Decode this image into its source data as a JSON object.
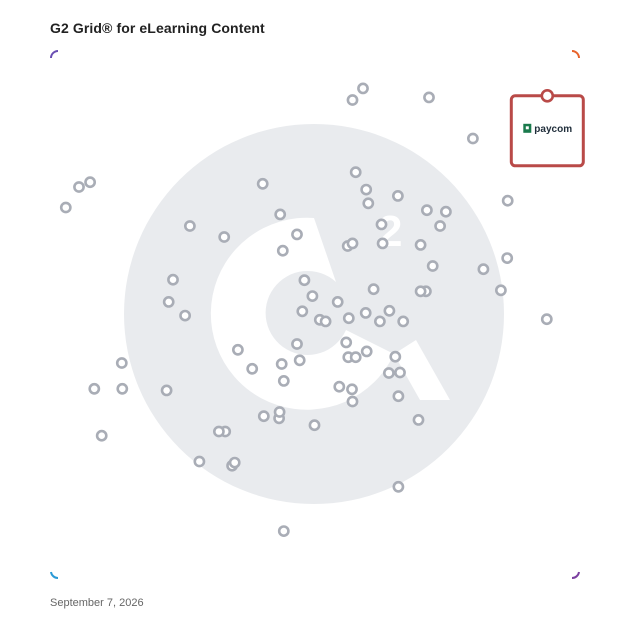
{
  "header": {
    "title": "G2 Grid® for eLearning Content"
  },
  "footer": {
    "date": "September 7, 2026"
  },
  "highlight": {
    "brand": "paycom",
    "brand_color": "#1a7a4c",
    "box_color": "#b94a48"
  },
  "colors": {
    "frame_top_left": "#6a4fb3",
    "frame_top_right": "#e8632b",
    "frame_bottom_left": "#2a9ad6",
    "frame_bottom_right": "#7b3fa0",
    "marker": "#a9adb6",
    "watermark": "#e9ebee"
  },
  "chart_data": {
    "type": "scatter",
    "title": "G2 Grid® for eLearning Content",
    "xlabel": "",
    "ylabel": "",
    "xlim": [
      0,
      100
    ],
    "ylim": [
      0,
      100
    ],
    "grid": "quadrants",
    "highlighted_point": {
      "label": "paycom",
      "x": 94,
      "y": 86
    },
    "points": [
      {
        "x": 2.8,
        "y": 70.3
      },
      {
        "x": 5.3,
        "y": 74.2
      },
      {
        "x": 7.4,
        "y": 75.1
      },
      {
        "x": 23.1,
        "y": 56.6
      },
      {
        "x": 26.3,
        "y": 66.8
      },
      {
        "x": 32.8,
        "y": 64.7
      },
      {
        "x": 22.3,
        "y": 52.4
      },
      {
        "x": 25.4,
        "y": 49.8
      },
      {
        "x": 40.1,
        "y": 74.8
      },
      {
        "x": 43.4,
        "y": 69.0
      },
      {
        "x": 46.6,
        "y": 65.2
      },
      {
        "x": 43.9,
        "y": 62.1
      },
      {
        "x": 35.4,
        "y": 43.3
      },
      {
        "x": 33.0,
        "y": 27.8
      },
      {
        "x": 38.1,
        "y": 39.7
      },
      {
        "x": 49.5,
        "y": 53.5
      },
      {
        "x": 47.6,
        "y": 50.6
      },
      {
        "x": 50.9,
        "y": 49.0
      },
      {
        "x": 52.0,
        "y": 48.7
      },
      {
        "x": 54.3,
        "y": 52.4
      },
      {
        "x": 48.0,
        "y": 56.5
      },
      {
        "x": 57.7,
        "y": 77.0
      },
      {
        "x": 57.1,
        "y": 90.7
      },
      {
        "x": 59.1,
        "y": 92.9
      },
      {
        "x": 71.6,
        "y": 91.2
      },
      {
        "x": 79.9,
        "y": 83.4
      },
      {
        "x": 86.5,
        "y": 71.6
      },
      {
        "x": 59.7,
        "y": 73.7
      },
      {
        "x": 60.1,
        "y": 71.1
      },
      {
        "x": 62.6,
        "y": 67.1
      },
      {
        "x": 65.7,
        "y": 72.5
      },
      {
        "x": 71.2,
        "y": 69.8
      },
      {
        "x": 74.8,
        "y": 69.5
      },
      {
        "x": 73.7,
        "y": 66.8
      },
      {
        "x": 56.2,
        "y": 63.0
      },
      {
        "x": 57.1,
        "y": 63.5
      },
      {
        "x": 62.8,
        "y": 63.5
      },
      {
        "x": 70.0,
        "y": 63.2
      },
      {
        "x": 72.3,
        "y": 59.2
      },
      {
        "x": 81.9,
        "y": 58.6
      },
      {
        "x": 86.4,
        "y": 60.7
      },
      {
        "x": 85.2,
        "y": 54.6
      },
      {
        "x": 71.0,
        "y": 54.4
      },
      {
        "x": 70.0,
        "y": 54.4
      },
      {
        "x": 61.1,
        "y": 54.8
      },
      {
        "x": 64.1,
        "y": 50.7
      },
      {
        "x": 59.6,
        "y": 50.3
      },
      {
        "x": 56.4,
        "y": 49.3
      },
      {
        "x": 62.3,
        "y": 48.7
      },
      {
        "x": 66.7,
        "y": 48.7
      },
      {
        "x": 55.9,
        "y": 44.7
      },
      {
        "x": 59.8,
        "y": 43.0
      },
      {
        "x": 56.3,
        "y": 41.9
      },
      {
        "x": 57.7,
        "y": 41.9
      },
      {
        "x": 65.2,
        "y": 42.0
      },
      {
        "x": 64.0,
        "y": 38.9
      },
      {
        "x": 66.1,
        "y": 39.0
      },
      {
        "x": 54.6,
        "y": 36.3
      },
      {
        "x": 57.0,
        "y": 35.8
      },
      {
        "x": 57.1,
        "y": 33.5
      },
      {
        "x": 65.8,
        "y": 34.5
      },
      {
        "x": 46.6,
        "y": 44.4
      },
      {
        "x": 43.7,
        "y": 40.6
      },
      {
        "x": 47.1,
        "y": 41.3
      },
      {
        "x": 44.1,
        "y": 37.4
      },
      {
        "x": 43.2,
        "y": 30.3
      },
      {
        "x": 43.3,
        "y": 31.5
      },
      {
        "x": 40.3,
        "y": 30.7
      },
      {
        "x": 49.9,
        "y": 29.0
      },
      {
        "x": 69.6,
        "y": 30.0
      },
      {
        "x": 65.8,
        "y": 17.3
      },
      {
        "x": 93.9,
        "y": 49.1
      },
      {
        "x": 13.4,
        "y": 40.8
      },
      {
        "x": 13.5,
        "y": 35.9
      },
      {
        "x": 8.2,
        "y": 35.9
      },
      {
        "x": 21.9,
        "y": 35.6
      },
      {
        "x": 9.6,
        "y": 27.0
      },
      {
        "x": 31.8,
        "y": 27.8
      },
      {
        "x": 28.1,
        "y": 22.1
      },
      {
        "x": 34.3,
        "y": 21.3
      },
      {
        "x": 34.8,
        "y": 21.9
      },
      {
        "x": 44.1,
        "y": 8.9
      }
    ]
  }
}
